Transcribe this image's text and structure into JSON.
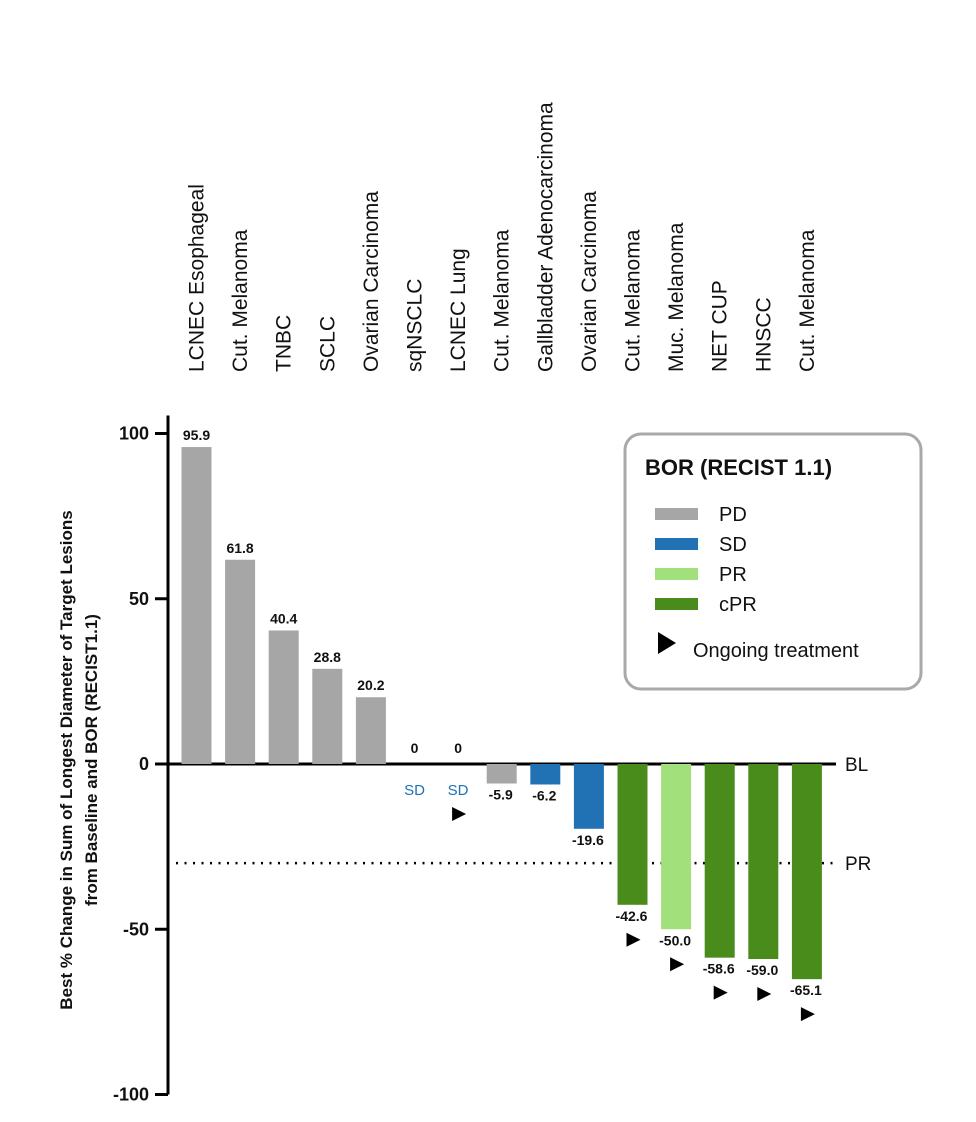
{
  "chart_data": {
    "type": "bar",
    "ylabel": "Best % Change in Sum of Longest Diameter of Target Lesions",
    "ylabel2": "from Baseline and BOR (RECIST1.1)",
    "ylim": [
      -100,
      100
    ],
    "yticks": [
      "100",
      "50",
      "0",
      "-50",
      "-100"
    ],
    "ytick_values": [
      100,
      50,
      0,
      -50,
      -100
    ],
    "categories": [
      "LCNEC Esophageal",
      "Cut. Melanoma",
      "TNBC",
      "SCLC",
      "Ovarian Carcinoma",
      "sqNSCLC",
      "LCNEC Lung",
      "Cut. Melanoma",
      "Gallbladder Adenocarcinoma",
      "Ovarian Carcinoma",
      "Cut. Melanoma",
      "Muc. Melanoma",
      "NET CUP",
      "HNSCC",
      "Cut. Melanoma"
    ],
    "values": [
      95.9,
      61.8,
      40.4,
      28.8,
      20.2,
      0,
      0,
      -5.9,
      -6.2,
      -19.6,
      -42.6,
      -50.0,
      -58.6,
      -59.0,
      -65.1
    ],
    "value_labels": [
      "95.9",
      "61.8",
      "40.4",
      "28.8",
      "20.2",
      "0",
      "0",
      "-5.9",
      "-6.2",
      "-19.6",
      "-42.6",
      "-50.0",
      "-58.6",
      "-59.0",
      "-65.1"
    ],
    "bor": [
      "PD",
      "PD",
      "PD",
      "PD",
      "PD",
      "SD",
      "SD",
      "PD",
      "SD",
      "SD",
      "cPR",
      "PR",
      "cPR",
      "cPR",
      "cPR"
    ],
    "bar_tags": [
      "",
      "",
      "",
      "",
      "",
      "SD",
      "SD",
      "",
      "",
      "",
      "",
      "",
      "",
      "",
      ""
    ],
    "ongoing": [
      false,
      false,
      false,
      false,
      false,
      false,
      true,
      false,
      false,
      false,
      true,
      true,
      true,
      true,
      true
    ],
    "reference_lines": [
      {
        "label": "BL",
        "y": 0,
        "style": "solid"
      },
      {
        "label": "PR",
        "y": -30,
        "style": "dotted"
      }
    ],
    "legend": {
      "title": "BOR (RECIST 1.1)",
      "position": "top-right",
      "items": [
        {
          "label": "PD",
          "color": "#a6a6a6"
        },
        {
          "label": "SD",
          "color": "#2171b5"
        },
        {
          "label": "PR",
          "color": "#a1e07a"
        },
        {
          "label": "cPR",
          "color": "#4a8c1c"
        }
      ],
      "ongoing_label": "Ongoing treatment"
    },
    "colors": {
      "PD": "#a6a6a6",
      "SD": "#2171b5",
      "PR": "#a1e07a",
      "cPR": "#4a8c1c"
    }
  }
}
